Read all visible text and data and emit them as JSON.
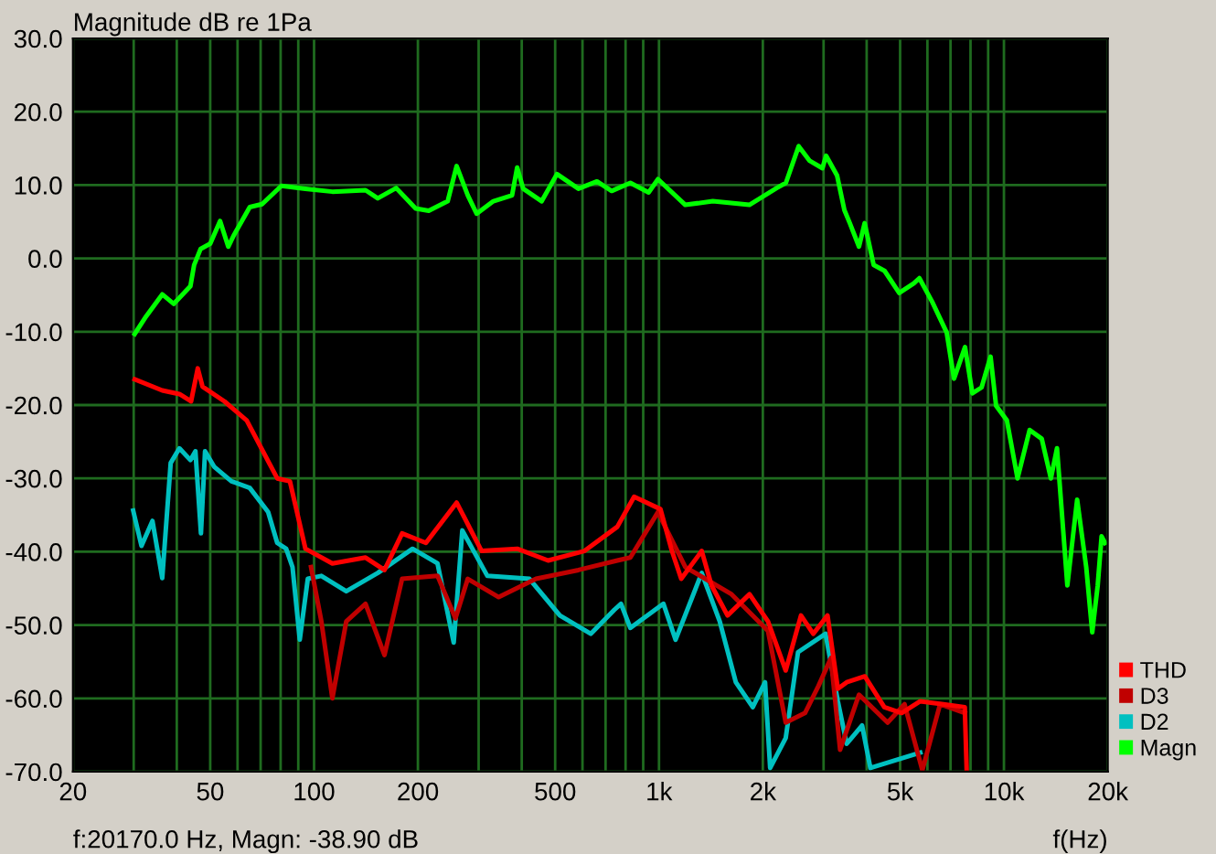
{
  "chart_data": {
    "type": "line",
    "title": "Magnitude dB re 1Pa",
    "xlabel": "f(Hz)",
    "annotations": [
      "f:20170.0 Hz, Magn: -38.90 dB"
    ],
    "log": "x",
    "grid": true,
    "legend": "bottom right",
    "xlim": [
      20,
      20000
    ],
    "ylim": [
      -70,
      30
    ],
    "xticks": [
      20,
      {
        "value": 30,
        "label": null
      },
      {
        "value": 40,
        "label": null
      },
      50,
      {
        "value": 60,
        "label": null
      },
      {
        "value": 70,
        "label": null
      },
      {
        "value": 80,
        "label": null
      },
      {
        "value": 90,
        "label": null
      },
      100,
      200,
      {
        "value": 300,
        "label": null
      },
      {
        "value": 400,
        "label": null
      },
      500,
      {
        "value": 600,
        "label": null
      },
      {
        "value": 700,
        "label": null
      },
      {
        "value": 800,
        "label": null
      },
      {
        "value": 900,
        "label": null
      },
      {
        "value": 1000,
        "label": "1k"
      },
      {
        "value": 2000,
        "label": "2k"
      },
      {
        "value": 3000,
        "label": null
      },
      {
        "value": 4000,
        "label": null
      },
      {
        "value": 5000,
        "label": "5k"
      },
      {
        "value": 6000,
        "label": null
      },
      {
        "value": 7000,
        "label": null
      },
      {
        "value": 8000,
        "label": null
      },
      {
        "value": 9000,
        "label": null
      },
      {
        "value": 10000,
        "label": "10k"
      },
      {
        "value": 20000,
        "label": "20k"
      }
    ],
    "yticks": [
      {
        "value": 30,
        "label": "30.0"
      },
      {
        "value": 20,
        "label": "20.0"
      },
      {
        "value": 10,
        "label": "10.0"
      },
      {
        "value": 0,
        "label": "0.0"
      },
      {
        "value": -10,
        "label": "-10.0"
      },
      {
        "value": -20,
        "label": "-20.0"
      },
      {
        "value": -30,
        "label": "-30.0"
      },
      {
        "value": -40,
        "label": "-40.0"
      },
      {
        "value": -50,
        "label": "-50.0"
      },
      {
        "value": -60,
        "label": "-60.0"
      },
      {
        "value": -70,
        "label": "-70.0"
      }
    ],
    "series": [
      {
        "name": "Magn",
        "color": "#00ff00",
        "x": [
          30.2,
          32.6,
          36.3,
          39.2,
          43.8,
          44.9,
          46.9,
          50,
          53.4,
          56.4,
          58.6,
          65.1,
          70.7,
          80.4,
          94.4,
          113,
          141,
          153,
          173,
          197,
          215,
          244,
          259,
          279,
          296,
          331,
          375,
          388,
          404,
          457,
          506,
          584,
          661,
          729,
          826,
          933,
          993,
          1192,
          1432,
          1828,
          2194,
          2333,
          2541,
          2735,
          2977,
          3050,
          3283,
          3447,
          3575,
          3800,
          3946,
          4191,
          4508,
          4970,
          5480,
          5686,
          6190,
          6823,
          7166,
          7712,
          8100,
          8614,
          9146,
          9490,
          10200,
          10950,
          11870,
          12870,
          13680,
          14250,
          15270,
          16300,
          17320,
          18030,
          18700,
          19190,
          19640
        ],
        "values": [
          -10.3,
          -7.9,
          -4.9,
          -6.2,
          -3.8,
          -0.9,
          1.3,
          2.0,
          5.1,
          1.6,
          3.2,
          7.0,
          7.4,
          9.9,
          9.5,
          9.1,
          9.3,
          8.2,
          9.6,
          6.8,
          6.5,
          7.8,
          12.6,
          8.6,
          6.1,
          7.8,
          8.6,
          12.4,
          9.5,
          7.8,
          11.5,
          9.5,
          10.5,
          9.2,
          10.3,
          9.0,
          10.8,
          7.3,
          7.8,
          7.3,
          9.6,
          10.3,
          15.3,
          13.3,
          12.3,
          14.0,
          11.3,
          6.6,
          4.8,
          1.6,
          4.8,
          -0.9,
          -1.7,
          -4.7,
          -3.4,
          -2.7,
          -5.9,
          -10.1,
          -16.4,
          -12.1,
          -18.4,
          -17.6,
          -13.4,
          -20.1,
          -22.1,
          -30.0,
          -23.4,
          -24.6,
          -30.0,
          -25.9,
          -44.6,
          -32.9,
          -42.1,
          -51.0,
          -44.6,
          -37.9,
          -38.8
        ]
      },
      {
        "name": "D2",
        "color": "#00c0c0",
        "x": [
          29.9,
          31.6,
          34.0,
          36.3,
          38.4,
          40.7,
          43.8,
          45.3,
          47.0,
          48.3,
          51.3,
          57.6,
          65.1,
          73.6,
          78.2,
          83.0,
          86.6,
          90.9,
          95.9,
          105,
          124,
          153,
          193,
          228,
          254,
          269,
          318,
          421,
          516,
          634,
          743,
          776,
          826,
          1030,
          1117,
          1330,
          1500,
          1670,
          1870,
          2030,
          2100,
          2330,
          2530,
          3040,
          3300,
          3500,
          3880,
          4100,
          5720
        ],
        "values": [
          -34.4,
          -39.2,
          -35.8,
          -43.6,
          -27.9,
          -25.9,
          -27.5,
          -26.3,
          -37.5,
          -26.3,
          -28.4,
          -30.4,
          -31.3,
          -34.6,
          -38.8,
          -39.6,
          -42.1,
          -52.0,
          -43.7,
          -43.3,
          -45.4,
          -42.9,
          -39.6,
          -41.6,
          -52.4,
          -37.1,
          -43.3,
          -43.7,
          -48.7,
          -51.2,
          -47.9,
          -47.1,
          -50.4,
          -47.1,
          -52.0,
          -42.9,
          -49.5,
          -57.8,
          -61.2,
          -57.8,
          -69.5,
          -65.4,
          -53.7,
          -51.2,
          -60.4,
          -66.2,
          -63.7,
          -69.5,
          -67.4
        ]
      },
      {
        "name": "D3",
        "color": "#c00000",
        "x": [
          98,
          105,
          113,
          124,
          141,
          160,
          180,
          228,
          257,
          279,
          343,
          440,
          584,
          757,
          826,
          993,
          1192,
          1623,
          2070,
          2330,
          2650,
          2900,
          3150,
          3350,
          3800,
          4600,
          5150,
          5800,
          6530,
          7700
        ],
        "values": [
          -42.1,
          -49.5,
          -60.0,
          -49.5,
          -47.1,
          -54.1,
          -43.7,
          -43.3,
          -49.1,
          -43.7,
          -46.2,
          -43.7,
          -42.5,
          -41.2,
          -40.8,
          -34.6,
          -42.1,
          -45.8,
          -50.8,
          -63.3,
          -62.0,
          -58.3,
          -54.5,
          -67.0,
          -59.5,
          -63.3,
          -60.8,
          -69.8,
          -60.8,
          -62.0
        ]
      },
      {
        "name": "THD",
        "color": "#ff0000",
        "x": [
          30.2,
          36.3,
          40.7,
          44.0,
          46.0,
          47.5,
          55,
          63.8,
          78.2,
          85.1,
          94.4,
          113,
          141,
          160,
          180,
          211,
          259,
          306,
          388,
          477,
          608,
          757,
          847,
          1010,
          1090,
          1160,
          1330,
          1420,
          1580,
          1830,
          2070,
          2330,
          2580,
          2800,
          3080,
          3300,
          3500,
          3950,
          4500,
          5050,
          5720,
          6680,
          7700,
          7800
        ],
        "values": [
          -16.5,
          -18.0,
          -18.5,
          -19.5,
          -15.0,
          -17.5,
          -19.5,
          -22.1,
          -30.0,
          -30.4,
          -39.6,
          -41.6,
          -40.8,
          -42.5,
          -37.5,
          -38.8,
          -33.3,
          -39.9,
          -39.6,
          -41.2,
          -39.9,
          -36.6,
          -32.5,
          -34.2,
          -39.9,
          -43.7,
          -39.9,
          -44.6,
          -48.7,
          -45.8,
          -49.5,
          -56.2,
          -48.7,
          -51.2,
          -48.7,
          -58.7,
          -57.8,
          -57.0,
          -61.2,
          -62.0,
          -60.4,
          -60.8,
          -61.2,
          -70.0
        ]
      }
    ]
  }
}
